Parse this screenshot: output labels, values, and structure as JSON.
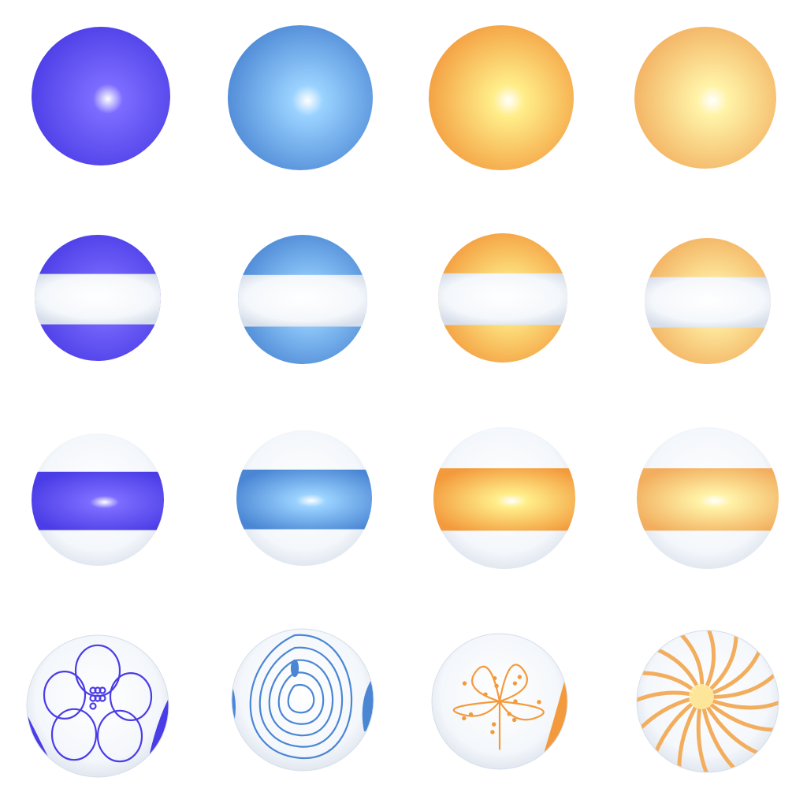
{
  "colors": {
    "indigo": "#4a3ce6",
    "indigo_light": "#7c6cff",
    "steel_blue": "#4a86d4",
    "steel_blue_light": "#9ad2ff",
    "orange": "#f39a3c",
    "orange_light": "#ffee8a",
    "peach": "#f2ae5e",
    "peach_light": "#fff3a8",
    "white_band": "#f4f7fb",
    "white_shadow": "#d6deea"
  },
  "rows": [
    {
      "pattern": "solid"
    },
    {
      "pattern": "white-middle-stripe"
    },
    {
      "pattern": "colored-middle-stripe"
    },
    {
      "pattern": "floral-line-art"
    }
  ],
  "columns": [
    {
      "color": "indigo"
    },
    {
      "color": "steel_blue"
    },
    {
      "color": "orange"
    },
    {
      "color": "peach"
    }
  ]
}
